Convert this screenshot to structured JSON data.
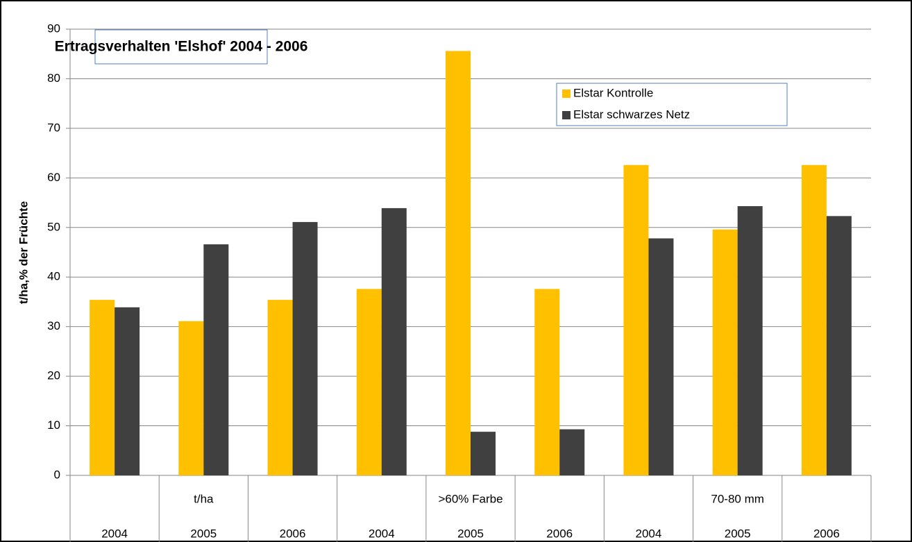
{
  "chart_data": {
    "type": "bar",
    "title": "Ertragsverhalten 'Elshof' 2004 - 2006",
    "y_label": "t/ha,% der Früchte",
    "categories": [
      "2004",
      "2005",
      "2006",
      "2004",
      "2005",
      "2006",
      "2004",
      "2005",
      "2006"
    ],
    "category_groups": [
      "t/ha",
      ">60% Farbe",
      "70-80 mm"
    ],
    "series": [
      {
        "name": "Elstar Kontrolle",
        "color": "#ffc000",
        "values": [
          35.4,
          31.1,
          35.4,
          37.6,
          85.6,
          37.6,
          62.6,
          49.6,
          62.6
        ]
      },
      {
        "name": "Elstar schwarzes Netz",
        "color": "#404040",
        "values": [
          33.9,
          46.6,
          51.1,
          53.9,
          8.8,
          9.3,
          47.8,
          54.3,
          52.3
        ]
      }
    ],
    "ylim": [
      0,
      90
    ],
    "yticks": [
      0,
      10,
      20,
      30,
      40,
      50,
      60,
      70,
      80,
      90
    ],
    "grid": true
  }
}
